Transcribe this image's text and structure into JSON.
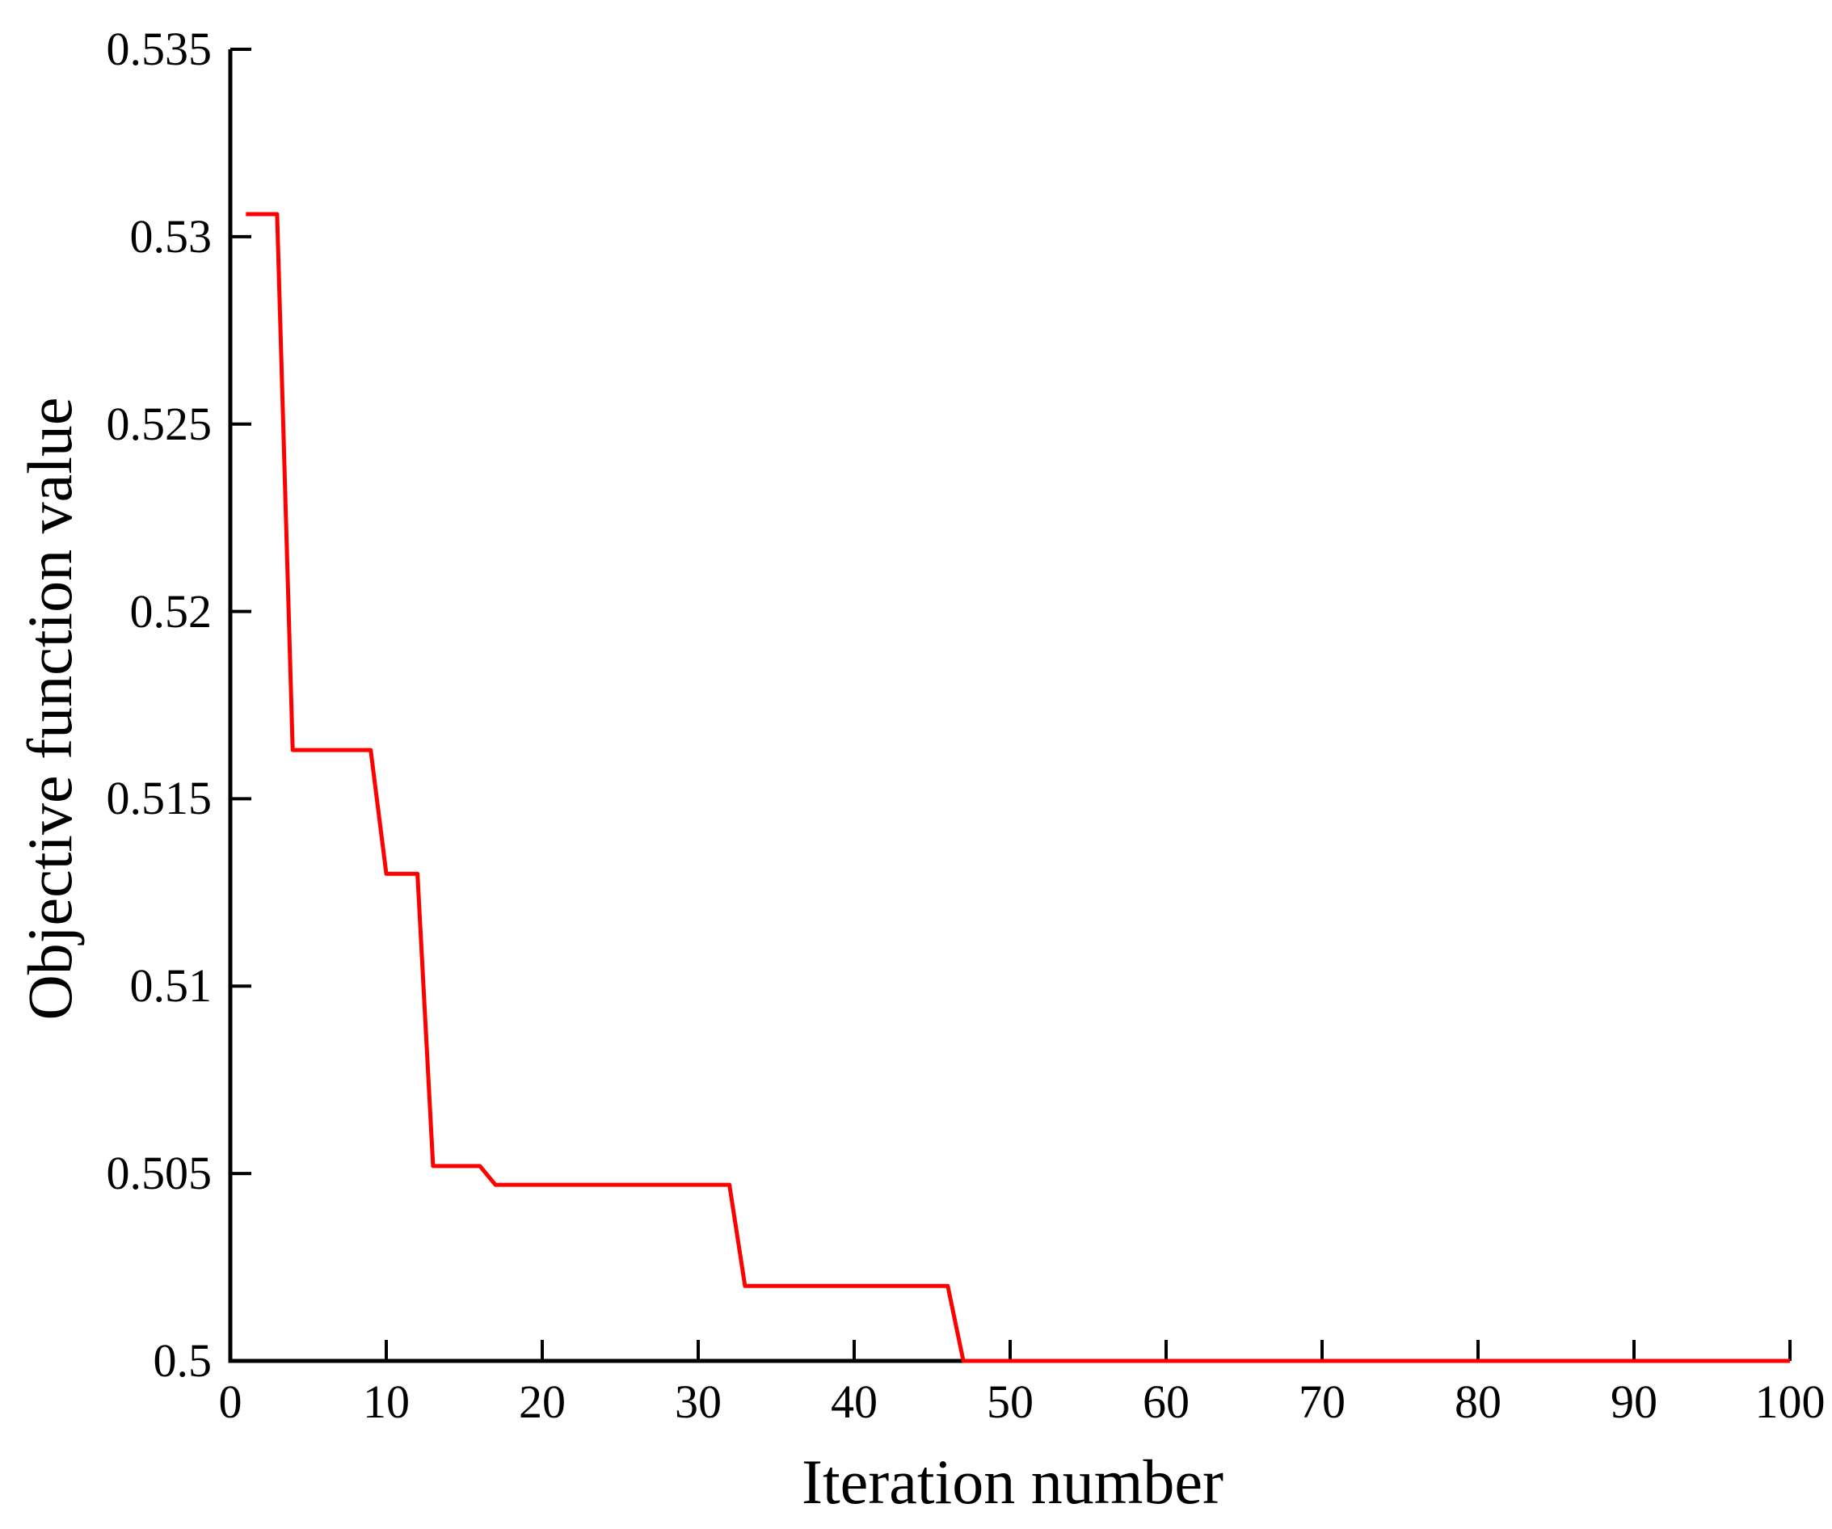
{
  "figure": {
    "background_color": "#ffffff",
    "axis_color": "#000000",
    "line_color": "#ff0000"
  },
  "chart_data": {
    "type": "line",
    "title": "",
    "xlabel": "Iteration number",
    "ylabel": "Objective function value",
    "xlim": [
      0,
      100
    ],
    "ylim": [
      0.5,
      0.535
    ],
    "x_ticks": [
      0,
      10,
      20,
      30,
      40,
      50,
      60,
      70,
      80,
      90,
      100
    ],
    "x_tick_labels": [
      "0",
      "10",
      "20",
      "30",
      "40",
      "50",
      "60",
      "70",
      "80",
      "90",
      "100"
    ],
    "y_ticks": [
      0.5,
      0.505,
      0.51,
      0.515,
      0.52,
      0.525,
      0.53,
      0.535
    ],
    "y_tick_labels": [
      "0.5",
      "0.505",
      "0.51",
      "0.515",
      "0.52",
      "0.525",
      "0.53",
      "0.535"
    ],
    "grid": false,
    "legend": "none",
    "tick_direction": "in",
    "series": [
      {
        "name": "objective-function-value",
        "color": "#ff0000",
        "line_width": 5,
        "points": [
          [
            1,
            0.5306
          ],
          [
            3,
            0.5306
          ],
          [
            4,
            0.5163
          ],
          [
            9,
            0.5163
          ],
          [
            10,
            0.513
          ],
          [
            12,
            0.513
          ],
          [
            13,
            0.5052
          ],
          [
            16,
            0.5052
          ],
          [
            17,
            0.5047
          ],
          [
            32,
            0.5047
          ],
          [
            33,
            0.502
          ],
          [
            46,
            0.502
          ],
          [
            47,
            0.5
          ],
          [
            100,
            0.5
          ]
        ]
      }
    ]
  }
}
